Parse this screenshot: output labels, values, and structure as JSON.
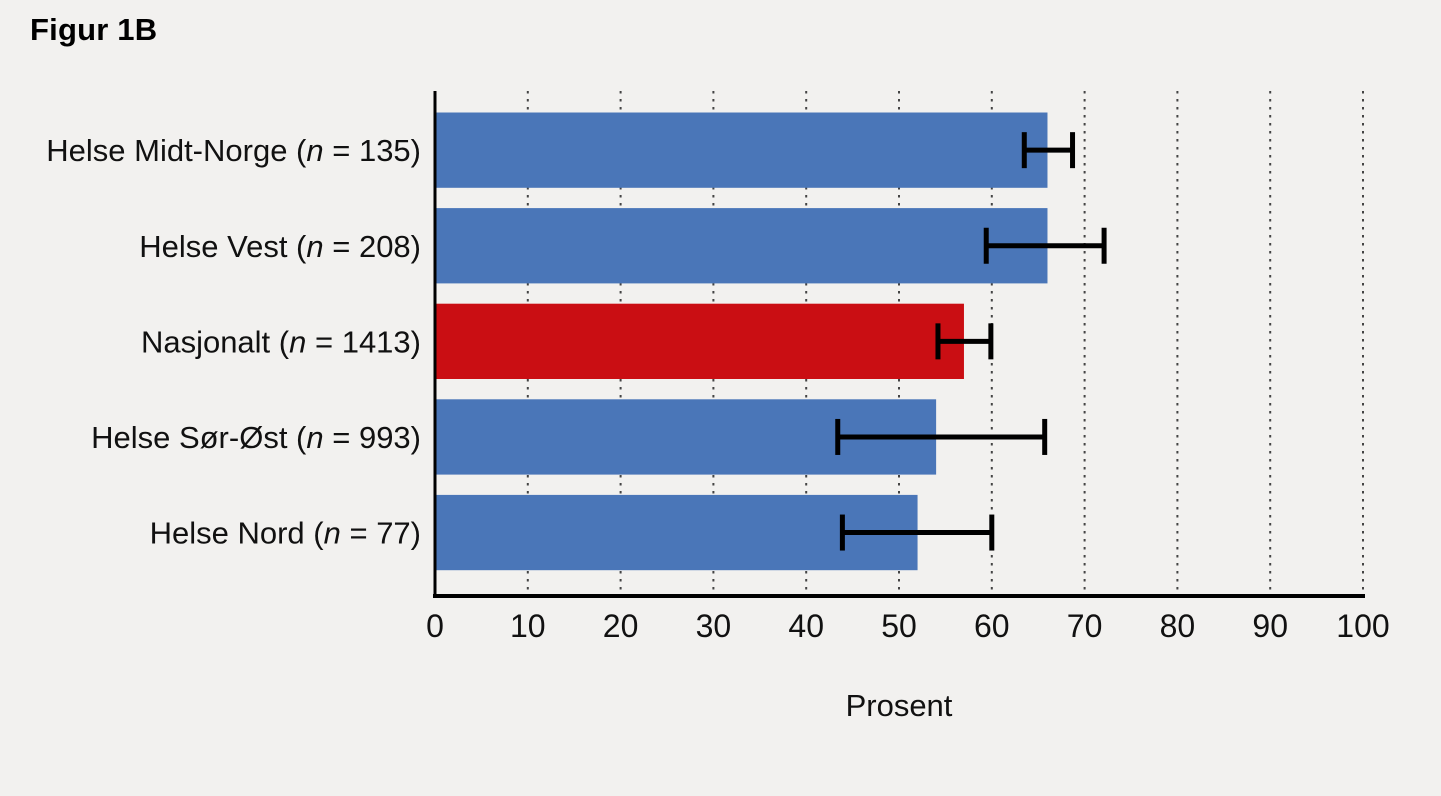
{
  "title": "Figur 1B",
  "chart_data": {
    "type": "bar",
    "orientation": "horizontal",
    "title": "Figur 1B",
    "xlabel": "Prosent",
    "ylabel": "",
    "xlim": [
      0,
      100
    ],
    "xticks": [
      0,
      10,
      20,
      30,
      40,
      50,
      60,
      70,
      80,
      90,
      100
    ],
    "grid": "dotted-vertical",
    "legend": "none",
    "categories": [
      "Helse Midt-Norge (n = 135)",
      "Helse Vest (n = 208)",
      "Nasjonalt (n = 1413)",
      "Helse Sør-Øst (n = 993)",
      "Helse Nord  (n = 77)"
    ],
    "rows": [
      {
        "label": "Helse Midt-Norge",
        "n_symbol": "n",
        "n_value": "135",
        "value": 66,
        "ci_low": 63.5,
        "ci_high": 68.7,
        "highlight": false
      },
      {
        "label": "Helse Vest",
        "n_symbol": "n",
        "n_value": "208",
        "value": 66,
        "ci_low": 59.4,
        "ci_high": 72.1,
        "highlight": false
      },
      {
        "label": "Nasjonalt",
        "n_symbol": "n",
        "n_value": "1413",
        "value": 57,
        "ci_low": 54.2,
        "ci_high": 59.9,
        "highlight": true
      },
      {
        "label": "Helse Sør-Øst",
        "n_symbol": "n",
        "n_value": "993",
        "value": 54,
        "ci_low": 43.4,
        "ci_high": 65.7,
        "highlight": false
      },
      {
        "label": "Helse Nord ",
        "n_symbol": "n",
        "n_value": "77",
        "value": 52,
        "ci_low": 43.9,
        "ci_high": 60.0,
        "highlight": false
      }
    ],
    "colors": {
      "bar_default": "#4a76b8",
      "bar_highlight": "#ca0e13",
      "error_bar": "#000000",
      "axis": "#000000",
      "grid": "#444444",
      "text": "#111111",
      "background": "#f2f1ef"
    }
  }
}
